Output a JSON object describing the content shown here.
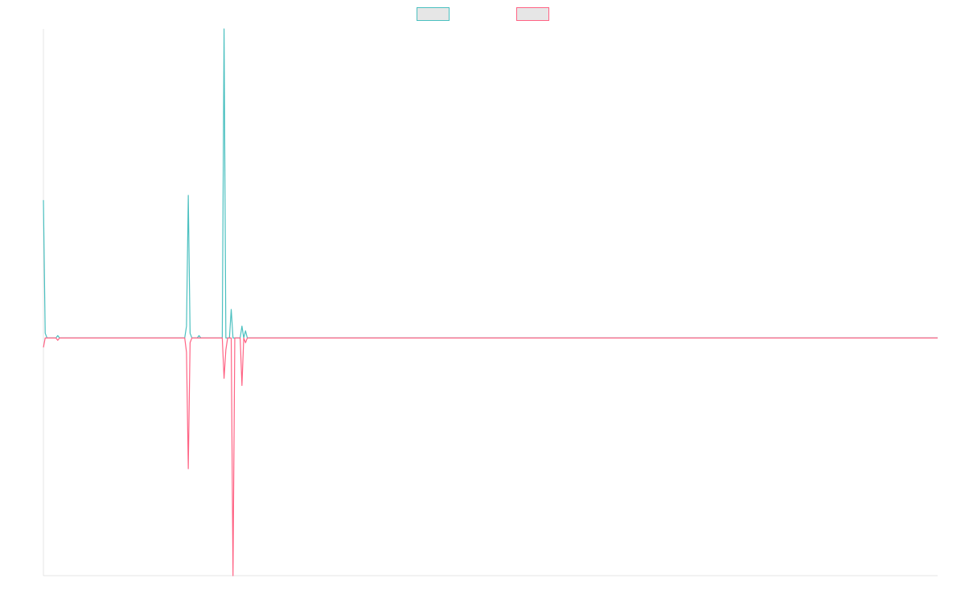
{
  "chart_data": {
    "type": "line",
    "title": "",
    "xlabel": "",
    "ylabel": "",
    "grid": false,
    "legend": {
      "position": "top-center",
      "entries": [
        {
          "label": "",
          "color": "#4bc0c0",
          "fill": "#e6e6e6"
        },
        {
          "label": "",
          "color": "#ff6384",
          "fill": "#e6e6e6"
        }
      ]
    },
    "x": [
      0,
      1,
      2,
      3,
      4,
      5,
      6,
      7,
      8,
      9,
      10,
      11,
      12,
      13,
      14,
      15,
      16,
      17,
      18,
      19,
      20,
      21,
      22,
      23,
      24,
      25,
      26,
      27,
      28,
      29,
      30,
      31,
      32,
      33,
      34,
      35,
      36,
      37,
      38,
      39,
      40,
      41,
      42,
      43,
      44,
      45,
      46,
      47,
      48,
      49,
      50,
      51,
      52,
      53,
      54,
      55,
      56,
      57,
      58,
      59,
      60,
      61,
      62,
      63,
      64,
      65,
      66,
      67,
      68,
      69,
      70,
      71,
      72,
      73,
      74,
      75,
      76,
      77,
      78,
      79,
      80,
      81,
      82,
      83,
      84,
      85,
      86,
      87,
      88,
      89,
      90,
      91,
      92,
      93,
      94,
      95,
      96,
      97,
      98,
      99,
      100,
      101,
      102,
      103,
      104,
      105,
      106,
      107,
      108,
      109,
      110,
      111,
      112,
      113,
      114,
      115,
      116,
      117,
      118,
      119,
      120,
      121,
      122,
      123,
      124,
      125,
      126,
      127,
      128,
      129,
      130,
      131,
      132,
      133,
      134,
      135,
      136,
      137,
      138,
      139,
      140,
      141,
      142,
      143,
      144,
      145,
      146,
      147,
      148,
      149,
      150,
      151,
      152,
      153,
      154,
      155,
      156,
      157,
      158,
      159,
      160,
      161,
      162,
      163,
      164,
      165,
      166,
      167,
      168,
      169,
      170,
      171,
      172,
      173,
      174,
      175,
      176,
      177,
      178,
      179,
      180,
      181,
      182,
      183,
      184,
      185,
      186,
      187,
      188,
      189,
      190,
      191,
      192,
      193,
      194,
      195,
      196,
      197,
      198,
      199,
      200,
      201,
      202,
      203,
      204,
      205,
      206,
      207,
      208,
      209,
      210,
      211,
      212,
      213,
      214,
      215,
      216,
      217,
      218,
      219,
      220,
      221,
      222,
      223,
      224,
      225,
      226,
      227,
      228,
      229,
      230,
      231,
      232,
      233,
      234,
      235,
      236,
      237,
      238,
      239,
      240,
      241,
      242,
      243,
      244,
      245,
      246,
      247,
      248,
      249,
      250,
      251,
      252,
      253,
      254,
      255,
      256,
      257,
      258,
      259,
      260,
      261,
      262,
      263,
      264,
      265,
      266,
      267,
      268,
      269,
      270,
      271,
      272,
      273,
      274,
      275,
      276,
      277,
      278,
      279,
      280,
      281,
      282,
      283,
      284,
      285,
      286,
      287,
      288,
      289,
      290,
      291,
      292,
      293,
      294,
      295,
      296,
      297,
      298,
      299,
      300,
      301,
      302,
      303,
      304,
      305,
      306,
      307,
      308,
      309,
      310,
      311,
      312,
      313,
      314,
      315,
      316,
      317,
      318,
      319,
      320,
      321,
      322,
      323,
      324,
      325,
      326,
      327,
      328,
      329,
      330,
      331,
      332,
      333,
      334,
      335,
      336,
      337,
      338,
      339,
      340,
      341,
      342,
      343,
      344,
      345,
      346,
      347,
      348,
      349,
      350,
      351,
      352,
      353,
      354,
      355,
      356,
      357,
      358,
      359,
      360,
      361,
      362,
      363,
      364,
      365,
      366,
      367,
      368,
      369,
      370,
      371,
      372,
      373,
      374,
      375,
      376,
      377,
      378,
      379,
      380,
      381,
      382,
      383,
      384,
      385,
      386,
      387,
      388,
      389,
      390,
      391,
      392,
      393,
      394,
      395,
      396,
      397,
      398,
      399,
      400,
      401,
      402,
      403,
      404,
      405,
      406,
      407,
      408,
      409,
      410,
      411,
      412,
      413,
      414,
      415,
      416,
      417,
      418,
      419,
      420,
      421,
      422,
      423,
      424,
      425,
      426,
      427,
      428,
      429,
      430,
      431,
      432,
      433,
      434,
      435,
      436,
      437,
      438,
      439,
      440,
      441,
      442,
      443,
      444,
      445,
      446,
      447,
      448,
      449,
      450,
      451,
      452,
      453,
      454,
      455,
      456,
      457,
      458,
      459,
      460,
      461,
      462,
      463,
      464,
      465,
      466,
      467,
      468,
      469,
      470,
      471,
      472,
      473,
      474,
      475,
      476,
      477,
      478,
      479,
      480,
      481,
      482,
      483,
      484,
      485,
      486,
      487,
      488,
      489,
      490,
      491,
      492,
      493,
      494,
      495,
      496,
      497,
      498,
      499,
      500
    ],
    "xlim": [
      0,
      500
    ],
    "ylim": [
      -1,
      1.3
    ],
    "series": [
      {
        "color": "#4bc0c0",
        "points": [
          [
            0,
            0.58
          ],
          [
            1,
            0.02
          ],
          [
            2,
            0
          ],
          [
            7,
            0
          ],
          [
            8,
            0.01
          ],
          [
            9,
            0
          ],
          [
            79,
            0
          ],
          [
            80,
            0.05
          ],
          [
            81,
            0.6
          ],
          [
            82,
            0.02
          ],
          [
            83,
            0
          ],
          [
            86,
            0
          ],
          [
            87,
            0.01
          ],
          [
            88,
            0
          ],
          [
            100,
            0
          ],
          [
            101,
            1.3
          ],
          [
            102,
            0
          ],
          [
            104,
            0
          ],
          [
            105,
            0.12
          ],
          [
            106,
            0
          ],
          [
            110,
            0
          ],
          [
            111,
            0.05
          ],
          [
            112,
            0
          ],
          [
            113,
            0.03
          ],
          [
            114,
            0
          ],
          [
            500,
            0
          ]
        ]
      },
      {
        "color": "#ff6384",
        "points": [
          [
            0,
            -0.04
          ],
          [
            1,
            0
          ],
          [
            7,
            0
          ],
          [
            8,
            -0.01
          ],
          [
            9,
            0
          ],
          [
            79,
            0
          ],
          [
            80,
            -0.06
          ],
          [
            81,
            -0.55
          ],
          [
            82,
            -0.02
          ],
          [
            83,
            0
          ],
          [
            100,
            0
          ],
          [
            101,
            -0.17
          ],
          [
            102,
            -0.05
          ],
          [
            103,
            0
          ],
          [
            105,
            0
          ],
          [
            106,
            -1
          ],
          [
            107,
            0
          ],
          [
            110,
            0
          ],
          [
            111,
            -0.2
          ],
          [
            112,
            0
          ],
          [
            113,
            -0.02
          ],
          [
            114,
            0
          ],
          [
            500,
            0
          ]
        ]
      }
    ]
  }
}
